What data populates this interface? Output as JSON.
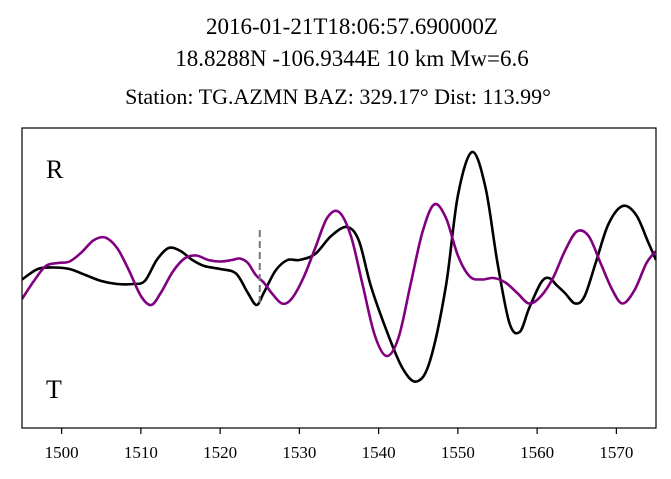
{
  "chart_data": {
    "type": "line",
    "title_lines": [
      "2016-01-21T18:06:57.690000Z",
      "18.8288N -106.9344E 10 km  Mw=6.6"
    ],
    "subtitle": "Station: TG.AZMN  BAZ: 329.17° Dist: 113.99°",
    "xlim": [
      1495,
      1575
    ],
    "ylim": [
      -1,
      1
    ],
    "xticks": [
      1500,
      1510,
      1520,
      1530,
      1540,
      1550,
      1560,
      1570
    ],
    "yticks_visible": false,
    "grid": false,
    "labels": {
      "R": "R",
      "T": "T"
    },
    "label_colors": {
      "R": "#800080",
      "T": "#000000"
    },
    "marker_line": {
      "x": 1525,
      "y_range": [
        -0.18,
        0.32
      ],
      "style": "dashed",
      "color": "#777777"
    },
    "series": [
      {
        "color": "#000000",
        "points": [
          [
            1495,
            -0.01
          ],
          [
            1497,
            0.06
          ],
          [
            1499,
            0.07
          ],
          [
            1501,
            0.06
          ],
          [
            1503,
            0.02
          ],
          [
            1505,
            -0.02
          ],
          [
            1507,
            -0.04
          ],
          [
            1509,
            -0.04
          ],
          [
            1510.5,
            -0.02
          ],
          [
            1512,
            0.12
          ],
          [
            1513.5,
            0.2
          ],
          [
            1515,
            0.18
          ],
          [
            1516.5,
            0.12
          ],
          [
            1518,
            0.08
          ],
          [
            1520,
            0.06
          ],
          [
            1522,
            0.03
          ],
          [
            1523.5,
            -0.1
          ],
          [
            1524.6,
            -0.18
          ],
          [
            1525.5,
            -0.1
          ],
          [
            1527,
            0.05
          ],
          [
            1528.5,
            0.12
          ],
          [
            1530,
            0.12
          ],
          [
            1532,
            0.16
          ],
          [
            1534,
            0.28
          ],
          [
            1536,
            0.34
          ],
          [
            1537.5,
            0.25
          ],
          [
            1539,
            -0.05
          ],
          [
            1541,
            -0.35
          ],
          [
            1543,
            -0.6
          ],
          [
            1544.8,
            -0.69
          ],
          [
            1546.5,
            -0.55
          ],
          [
            1548.5,
            -0.05
          ],
          [
            1550,
            0.55
          ],
          [
            1551.8,
            0.84
          ],
          [
            1553.5,
            0.6
          ],
          [
            1555,
            0.1
          ],
          [
            1556.5,
            -0.3
          ],
          [
            1557.8,
            -0.36
          ],
          [
            1559,
            -0.2
          ],
          [
            1560.5,
            -0.03
          ],
          [
            1561.5,
            0.0
          ],
          [
            1562.5,
            -0.05
          ],
          [
            1563.5,
            -0.1
          ],
          [
            1564.8,
            -0.17
          ],
          [
            1566,
            -0.12
          ],
          [
            1567.5,
            0.12
          ],
          [
            1569,
            0.36
          ],
          [
            1570.8,
            0.48
          ],
          [
            1572.5,
            0.42
          ],
          [
            1574,
            0.24
          ],
          [
            1575,
            0.12
          ]
        ]
      },
      {
        "color": "#800080",
        "points": [
          [
            1495,
            -0.14
          ],
          [
            1496.5,
            -0.02
          ],
          [
            1498,
            0.08
          ],
          [
            1499.5,
            0.1
          ],
          [
            1501,
            0.11
          ],
          [
            1502.5,
            0.17
          ],
          [
            1504,
            0.25
          ],
          [
            1505.5,
            0.27
          ],
          [
            1507,
            0.2
          ],
          [
            1508.5,
            0.05
          ],
          [
            1510,
            -0.12
          ],
          [
            1511.3,
            -0.18
          ],
          [
            1512.5,
            -0.1
          ],
          [
            1514,
            0.04
          ],
          [
            1515.5,
            0.13
          ],
          [
            1517,
            0.15
          ],
          [
            1518.5,
            0.12
          ],
          [
            1520,
            0.11
          ],
          [
            1521.5,
            0.12
          ],
          [
            1522.5,
            0.13
          ],
          [
            1523.5,
            0.1
          ],
          [
            1524.5,
            0.02
          ],
          [
            1525.5,
            -0.03
          ],
          [
            1526.5,
            -0.1
          ],
          [
            1527.8,
            -0.17
          ],
          [
            1529,
            -0.14
          ],
          [
            1530.5,
            0.0
          ],
          [
            1532,
            0.2
          ],
          [
            1533.5,
            0.4
          ],
          [
            1535,
            0.44
          ],
          [
            1536.5,
            0.28
          ],
          [
            1538,
            -0.05
          ],
          [
            1539.5,
            -0.38
          ],
          [
            1541,
            -0.52
          ],
          [
            1542.5,
            -0.4
          ],
          [
            1544,
            -0.05
          ],
          [
            1545.5,
            0.3
          ],
          [
            1547,
            0.49
          ],
          [
            1548.5,
            0.4
          ],
          [
            1550,
            0.15
          ],
          [
            1551.5,
            0.01
          ],
          [
            1553,
            -0.01
          ],
          [
            1554.5,
            0.0
          ],
          [
            1556,
            -0.03
          ],
          [
            1557.5,
            -0.1
          ],
          [
            1559,
            -0.17
          ],
          [
            1560.5,
            -0.12
          ],
          [
            1562,
            0.0
          ],
          [
            1563.5,
            0.18
          ],
          [
            1565,
            0.31
          ],
          [
            1566.5,
            0.28
          ],
          [
            1568,
            0.1
          ],
          [
            1569.5,
            -0.08
          ],
          [
            1570.8,
            -0.17
          ],
          [
            1572.3,
            -0.08
          ],
          [
            1573.8,
            0.1
          ],
          [
            1575,
            0.18
          ]
        ]
      }
    ]
  }
}
